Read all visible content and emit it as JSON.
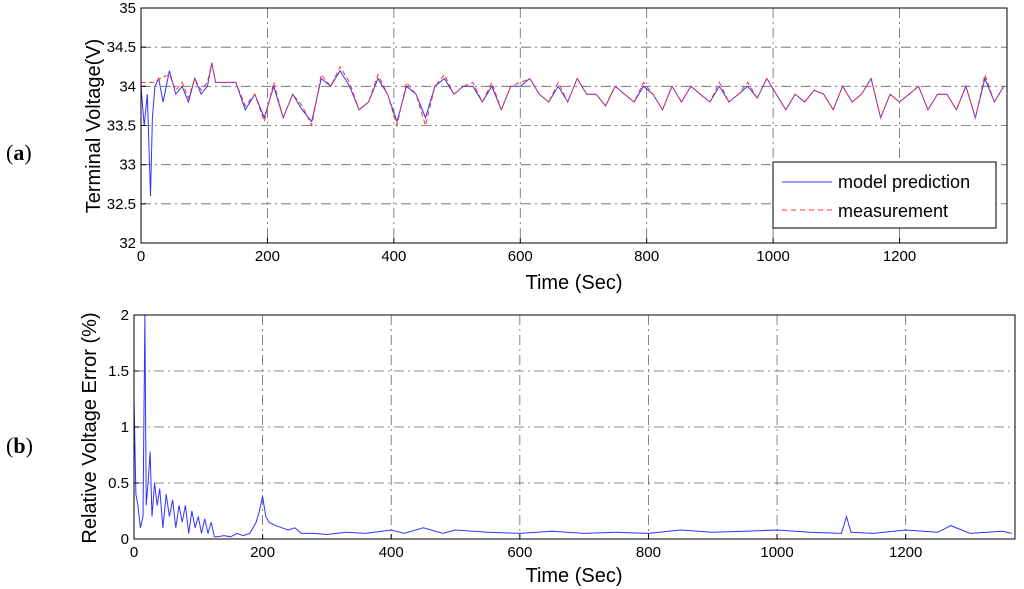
{
  "chart_data": [
    {
      "panel": "(a)",
      "panel_letter": "a",
      "type": "line",
      "ylabel": "Terminal Voltage(V)",
      "xlabel": "Time (Sec)",
      "xlim": [
        0,
        1370
      ],
      "ylim": [
        32,
        35
      ],
      "xticks": [
        0,
        200,
        400,
        600,
        800,
        1000,
        1200
      ],
      "yticks": [
        32,
        32.5,
        33,
        33.5,
        34,
        34.5,
        35
      ],
      "grid": true,
      "legend_position": "bottom-right",
      "colors": {
        "model prediction": "#3333ff",
        "measurement": "#ff3333"
      },
      "series": [
        {
          "name": "model prediction",
          "style": "solid",
          "x": [
            0,
            5,
            10,
            15,
            18,
            22,
            28,
            35,
            45,
            55,
            65,
            75,
            85,
            95,
            105,
            112,
            118,
            130,
            150,
            165,
            180,
            195,
            210,
            225,
            240,
            255,
            270,
            285,
            300,
            315,
            330,
            345,
            360,
            375,
            390,
            405,
            420,
            435,
            450,
            465,
            480,
            495,
            510,
            525,
            540,
            555,
            570,
            585,
            600,
            615,
            630,
            645,
            660,
            675,
            690,
            705,
            720,
            735,
            750,
            765,
            780,
            795,
            810,
            825,
            840,
            855,
            870,
            885,
            900,
            915,
            930,
            945,
            960,
            975,
            990,
            1005,
            1020,
            1035,
            1050,
            1065,
            1080,
            1095,
            1110,
            1125,
            1140,
            1155,
            1170,
            1185,
            1200,
            1215,
            1230,
            1245,
            1260,
            1275,
            1290,
            1305,
            1320,
            1335,
            1350,
            1365
          ],
          "y": [
            34.0,
            33.5,
            33.9,
            32.6,
            33.6,
            34.0,
            34.1,
            33.8,
            34.2,
            33.9,
            34.0,
            33.8,
            34.1,
            33.9,
            34.0,
            34.3,
            34.05,
            34.05,
            34.05,
            33.7,
            33.9,
            33.6,
            34.0,
            33.6,
            33.9,
            33.7,
            33.55,
            34.1,
            34.0,
            34.2,
            34.0,
            33.7,
            33.8,
            34.1,
            33.9,
            33.55,
            34.0,
            33.9,
            33.6,
            34.0,
            34.1,
            33.9,
            34.0,
            34.0,
            33.8,
            34.0,
            33.7,
            34.0,
            34.0,
            34.1,
            33.9,
            33.8,
            34.0,
            33.8,
            34.1,
            33.9,
            33.9,
            33.75,
            34.0,
            33.9,
            33.8,
            34.0,
            33.9,
            33.7,
            34.0,
            33.8,
            34.0,
            33.9,
            33.8,
            34.0,
            33.8,
            33.9,
            34.0,
            33.85,
            34.1,
            33.9,
            33.7,
            33.9,
            33.8,
            33.95,
            33.9,
            33.7,
            34.0,
            33.8,
            33.9,
            34.1,
            33.6,
            33.9,
            33.8,
            33.9,
            34.0,
            33.7,
            33.9,
            33.9,
            33.7,
            34.0,
            33.6,
            34.1,
            33.8,
            34.0
          ]
        },
        {
          "name": "measurement",
          "style": "dashed",
          "x": [
            0,
            20,
            30,
            45,
            55,
            65,
            75,
            85,
            95,
            105,
            112,
            118,
            130,
            150,
            165,
            180,
            195,
            210,
            225,
            240,
            255,
            270,
            285,
            300,
            315,
            330,
            345,
            360,
            375,
            390,
            405,
            420,
            435,
            450,
            465,
            480,
            495,
            510,
            525,
            540,
            555,
            570,
            585,
            600,
            615,
            630,
            645,
            660,
            675,
            690,
            705,
            720,
            735,
            750,
            765,
            780,
            795,
            810,
            825,
            840,
            855,
            870,
            885,
            900,
            915,
            930,
            945,
            960,
            975,
            990,
            1005,
            1020,
            1035,
            1050,
            1065,
            1080,
            1095,
            1110,
            1125,
            1140,
            1155,
            1170,
            1185,
            1200,
            1215,
            1230,
            1245,
            1260,
            1275,
            1290,
            1305,
            1320,
            1335,
            1350,
            1365
          ],
          "y": [
            34.05,
            34.05,
            34.1,
            34.15,
            33.95,
            34.05,
            33.85,
            34.1,
            33.95,
            34.05,
            34.3,
            34.05,
            34.05,
            34.05,
            33.75,
            33.9,
            33.55,
            34.05,
            33.6,
            33.9,
            33.75,
            33.5,
            34.15,
            34.0,
            34.25,
            34.05,
            33.7,
            33.8,
            34.15,
            33.9,
            33.5,
            34.05,
            33.9,
            33.5,
            34.0,
            34.15,
            33.9,
            34.0,
            34.05,
            33.8,
            34.05,
            33.7,
            34.0,
            34.05,
            34.1,
            33.9,
            33.8,
            34.05,
            33.8,
            34.1,
            33.9,
            33.9,
            33.75,
            34.0,
            33.9,
            33.8,
            34.05,
            33.9,
            33.7,
            34.0,
            33.8,
            34.0,
            33.9,
            33.8,
            34.05,
            33.8,
            33.9,
            34.05,
            33.85,
            34.1,
            33.9,
            33.7,
            33.9,
            33.8,
            33.95,
            33.9,
            33.7,
            34.0,
            33.8,
            33.9,
            34.1,
            33.6,
            33.9,
            33.8,
            33.9,
            34.0,
            33.7,
            33.9,
            33.9,
            33.7,
            34.0,
            33.6,
            34.15,
            33.8,
            34.0
          ]
        }
      ]
    },
    {
      "panel": "(b)",
      "panel_letter": "b",
      "type": "line",
      "ylabel": "Relative Voltage Error (%)",
      "xlabel": "Time (Sec)",
      "xlim": [
        0,
        1370
      ],
      "ylim": [
        0,
        2
      ],
      "xticks": [
        0,
        200,
        400,
        600,
        800,
        1000,
        1200
      ],
      "yticks": [
        0,
        0.5,
        1,
        1.5,
        2
      ],
      "grid": true,
      "colors": {
        "error": "#3333ff"
      },
      "series": [
        {
          "x": [
            0,
            3,
            6,
            10,
            14,
            17,
            19,
            22,
            25,
            28,
            32,
            36,
            40,
            45,
            50,
            55,
            60,
            65,
            70,
            75,
            80,
            85,
            90,
            95,
            100,
            105,
            110,
            115,
            120,
            125,
            130,
            140,
            150,
            160,
            170,
            180,
            190,
            195,
            200,
            205,
            210,
            220,
            230,
            240,
            250,
            260,
            280,
            300,
            330,
            360,
            400,
            420,
            450,
            480,
            500,
            550,
            600,
            650,
            700,
            750,
            800,
            850,
            900,
            950,
            1000,
            1050,
            1100,
            1108,
            1115,
            1150,
            1200,
            1250,
            1270,
            1300,
            1350,
            1365
          ],
          "y": [
            1.25,
            0.4,
            0.3,
            0.1,
            0.2,
            2.0,
            0.3,
            0.5,
            0.78,
            0.2,
            0.5,
            0.3,
            0.45,
            0.1,
            0.4,
            0.2,
            0.35,
            0.1,
            0.3,
            0.15,
            0.3,
            0.05,
            0.25,
            0.1,
            0.2,
            0.05,
            0.18,
            0.05,
            0.15,
            0.02,
            0.02,
            0.03,
            0.02,
            0.05,
            0.03,
            0.05,
            0.15,
            0.25,
            0.38,
            0.2,
            0.15,
            0.12,
            0.1,
            0.08,
            0.1,
            0.05,
            0.05,
            0.04,
            0.06,
            0.05,
            0.08,
            0.05,
            0.1,
            0.05,
            0.08,
            0.06,
            0.05,
            0.07,
            0.05,
            0.06,
            0.05,
            0.08,
            0.06,
            0.07,
            0.08,
            0.06,
            0.05,
            0.2,
            0.06,
            0.05,
            0.08,
            0.06,
            0.12,
            0.05,
            0.07,
            0.05
          ]
        }
      ]
    }
  ]
}
